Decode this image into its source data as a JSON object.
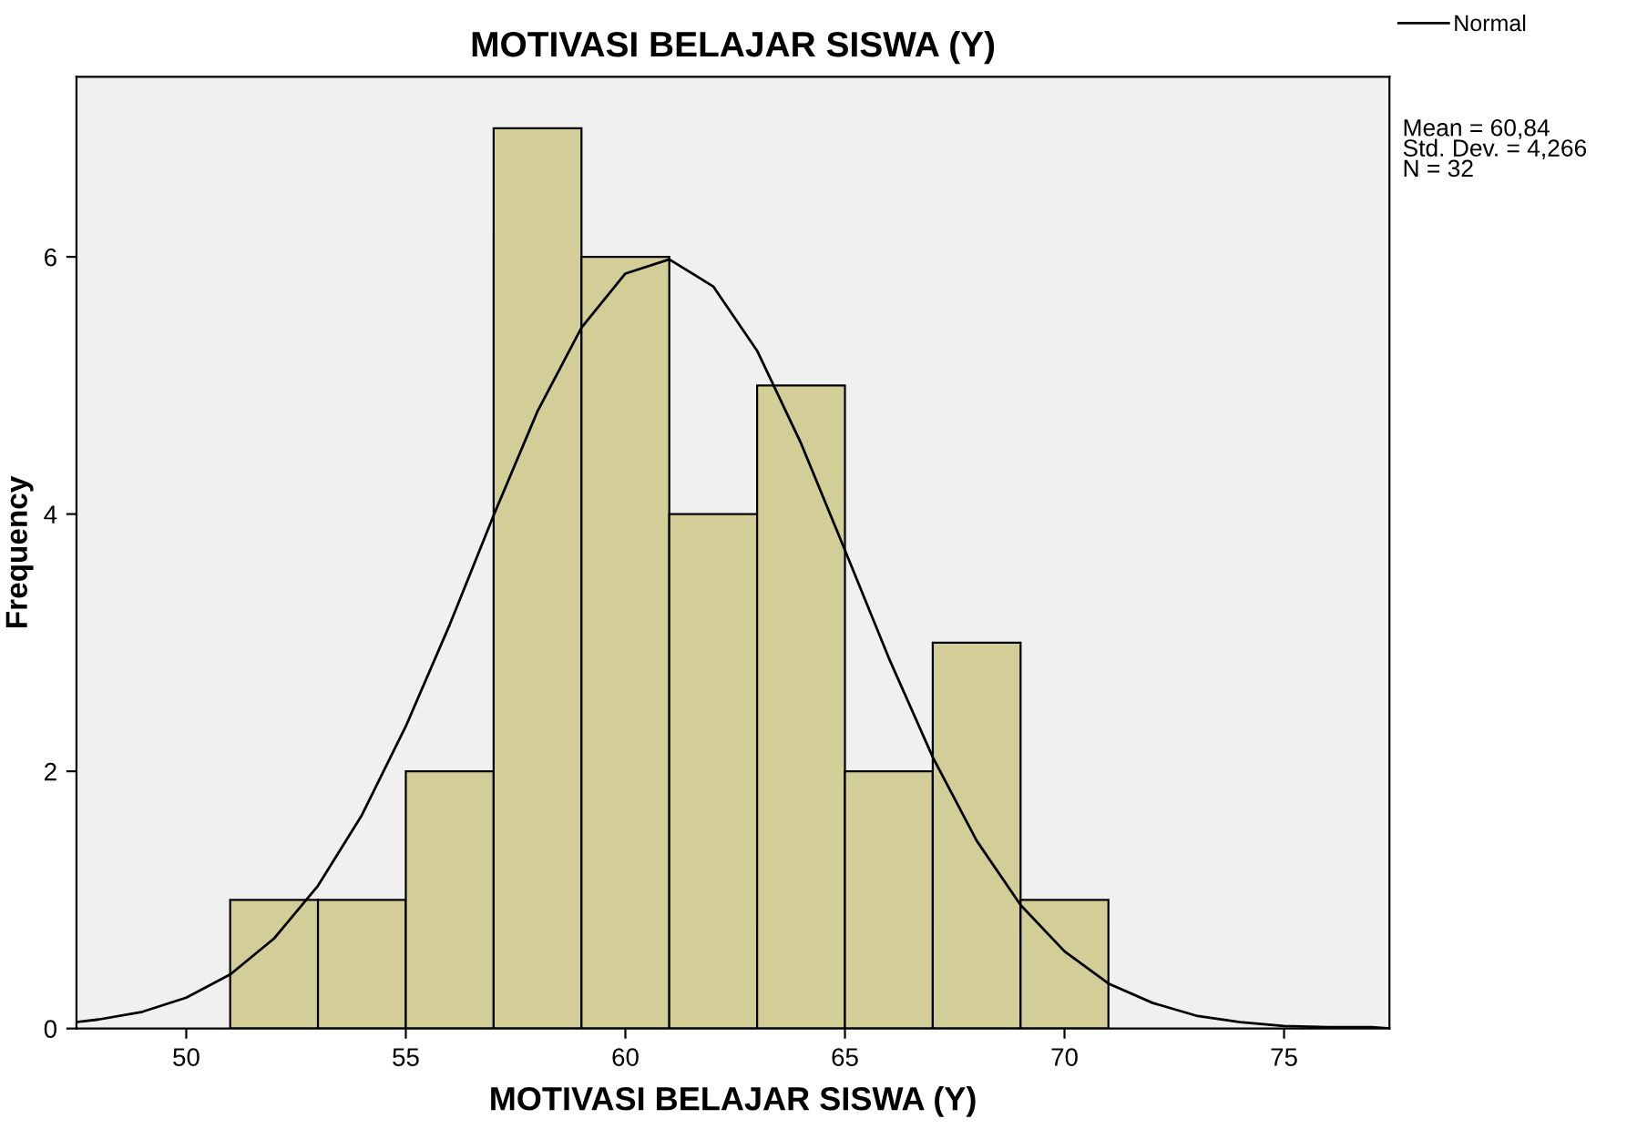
{
  "chart_data": {
    "type": "histogram",
    "title": "MOTIVASI BELAJAR SISWA (Y)",
    "xlabel": "MOTIVASI BELAJAR SISWA (Y)",
    "ylabel": "Frequency",
    "bins": [
      51,
      53,
      55,
      57,
      59,
      61,
      63,
      65,
      67,
      69,
      71
    ],
    "values": [
      1,
      1,
      2,
      7,
      6,
      4,
      5,
      2,
      3,
      1
    ],
    "color": "#d3ce97",
    "series": [
      {
        "type": "line",
        "name": "Normal",
        "color": "#000000",
        "x": [
          47.5,
          48,
          49,
          50,
          51,
          52,
          53,
          54,
          55,
          56,
          57,
          58,
          59,
          60,
          61,
          62,
          63,
          64,
          65,
          66,
          67,
          68,
          69,
          70,
          71,
          72,
          73,
          74,
          75,
          76,
          77,
          77.4
        ],
        "values": [
          0.05,
          0.07,
          0.13,
          0.24,
          0.42,
          0.7,
          1.11,
          1.66,
          2.35,
          3.14,
          3.99,
          4.8,
          5.45,
          5.87,
          5.98,
          5.77,
          5.27,
          4.55,
          3.72,
          2.88,
          2.11,
          1.46,
          0.96,
          0.6,
          0.35,
          0.2,
          0.1,
          0.05,
          0.02,
          0.01,
          0.01,
          0
        ]
      }
    ],
    "xlim": [
      47.5,
      77.4
    ],
    "xticks": [
      50,
      55,
      60,
      65,
      70,
      75
    ],
    "ylim": [
      0,
      7.4
    ],
    "yticks": [
      0,
      2,
      4,
      6
    ],
    "annotations": [
      "Mean = 60,84",
      "Std. Dev. = 4,266",
      "N = 32"
    ],
    "legend": "top right",
    "grid": false
  }
}
